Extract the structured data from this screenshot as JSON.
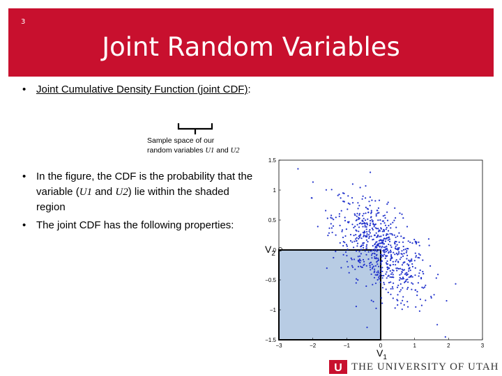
{
  "slide_number": "3",
  "title": "Joint Random Variables",
  "bullet1": {
    "text": "Joint Cumulative Density Function (joint CDF)",
    "colon": ":"
  },
  "brace_note": {
    "line1": "Sample space of our",
    "line2_prefix": "random variables ",
    "u1": "U1",
    "and": " and ",
    "u2": "U2"
  },
  "bullet2": {
    "pre": "In the figure, the CDF is the probability that the variable (",
    "u1": "U1",
    "and": " and ",
    "u2": "U2",
    "post": ") lie within the shaded region"
  },
  "bullet3": "The joint CDF has the following properties:",
  "point_labels": {
    "v2": "V2",
    "v2_sub": "2",
    "v2_main": "V",
    "v1_main": "V",
    "v1_sub": "1"
  },
  "footer": {
    "university": "THE UNIVERSITY OF UTAH",
    "logo_letter": "U"
  },
  "colors": {
    "title_bar": "#c8102e",
    "shaded_region": "#b8cce4",
    "points": "#2233cc",
    "logo": "#c8102e"
  },
  "chart_data": {
    "type": "scatter",
    "title": "",
    "xlabel": "",
    "ylabel": "",
    "xlim": [
      -3,
      3
    ],
    "ylim": [
      -1.5,
      1.5
    ],
    "x_ticks": [
      "−3",
      "−2",
      "−1",
      "0",
      "1",
      "2",
      "3"
    ],
    "y_ticks": [
      "1.5",
      "1",
      "0.5",
      "0",
      "−0.5",
      "−1",
      "−1.5"
    ],
    "shaded_region": {
      "x": [
        -3,
        0
      ],
      "y": [
        -1.5,
        0
      ]
    },
    "cluster": {
      "center": [
        0,
        0
      ],
      "spread_x": 0.7,
      "spread_y": 0.45,
      "correlation": -0.6,
      "count": 700
    }
  }
}
